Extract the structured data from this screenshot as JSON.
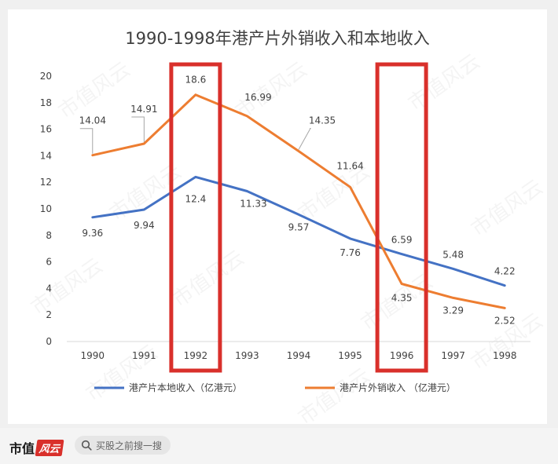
{
  "chart_data": {
    "type": "line",
    "title": "1990-1998年港产片外销收入和本地收入",
    "categories": [
      "1990",
      "1991",
      "1992",
      "1993",
      "1994",
      "1995",
      "1996",
      "1997",
      "1998"
    ],
    "ylim": [
      0,
      20
    ],
    "yticks": [
      "0",
      "2",
      "4",
      "6",
      "8",
      "10",
      "12",
      "14",
      "16",
      "18",
      "20"
    ],
    "series": [
      {
        "name": "港产片本地收入（亿港元）",
        "color": "#4472c4",
        "values": [
          9.36,
          9.94,
          12.4,
          11.33,
          9.57,
          7.76,
          6.59,
          5.48,
          4.22
        ],
        "labels": [
          "9.36",
          "9.94",
          "12.4",
          "11.33",
          "9.57",
          "7.76",
          "6.59",
          "5.48",
          "4.22"
        ]
      },
      {
        "name": "港产片外销收入 （亿港元）",
        "color": "#ed7d31",
        "values": [
          14.04,
          14.91,
          18.6,
          16.99,
          14.35,
          11.64,
          4.35,
          3.29,
          2.52
        ],
        "labels": [
          "14.04",
          "14.91",
          "18.6",
          "16.99",
          "14.35",
          "11.64",
          "4.35",
          "3.29",
          "2.52"
        ]
      }
    ],
    "highlights": [
      "1992",
      "1996"
    ],
    "highlight_color": "#d9302b",
    "watermark": "市值风云"
  },
  "footer": {
    "brand": "市值",
    "brand_seal": "风云",
    "search_placeholder": "买股之前搜一搜"
  }
}
